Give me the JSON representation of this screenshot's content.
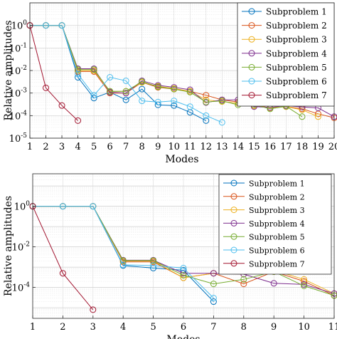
{
  "chart_data": [
    {
      "type": "line",
      "xlabel": "Modes",
      "ylabel": "Relative amplitudes",
      "xlim": [
        1,
        20
      ],
      "ylim": [
        1e-05,
        10
      ],
      "yscale": "log",
      "xticks": [
        1,
        2,
        3,
        4,
        5,
        6,
        7,
        8,
        9,
        10,
        11,
        12,
        13,
        14,
        15,
        16,
        17,
        18,
        19,
        20
      ],
      "yticks": [
        {
          "value": 1,
          "base": "10",
          "exp": "0"
        },
        {
          "value": 0.1,
          "base": "10",
          "exp": "-1"
        },
        {
          "value": 0.01,
          "base": "10",
          "exp": "-2"
        },
        {
          "value": 0.001,
          "base": "10",
          "exp": "-3"
        },
        {
          "value": 0.0001,
          "base": "10",
          "exp": "-4"
        },
        {
          "value": 1e-05,
          "base": "10",
          "exp": "-5"
        }
      ],
      "grid": true,
      "legend_position": "top-right",
      "series": [
        {
          "name": "Subproblem 1",
          "color": "#0072BD",
          "x": [
            1,
            2,
            3,
            4,
            5,
            6,
            7,
            8,
            9,
            10,
            11,
            12
          ],
          "y": [
            1,
            1,
            1,
            0.005,
            0.0006,
            0.0011,
            0.0005,
            0.0015,
            0.0003,
            0.00028,
            0.00014,
            6e-05
          ]
        },
        {
          "name": "Subproblem 2",
          "color": "#D95319",
          "x": [
            1,
            2,
            3,
            4,
            5,
            6,
            7,
            8,
            9,
            10,
            11,
            12,
            13,
            14,
            15,
            16,
            17,
            18,
            19,
            20
          ],
          "y": [
            1,
            1,
            1,
            0.009,
            0.009,
            0.001,
            0.001,
            0.003,
            0.0018,
            0.0015,
            0.0012,
            0.0008,
            0.0005,
            0.0004,
            0.0003,
            0.00022,
            0.00025,
            0.0002,
            0.00012,
            8e-05
          ]
        },
        {
          "name": "Subproblem 3",
          "color": "#EDB120",
          "x": [
            1,
            2,
            3,
            4,
            5,
            6,
            7,
            8,
            9,
            10,
            11,
            12,
            13,
            14,
            15,
            16,
            17,
            18,
            19
          ],
          "y": [
            1,
            1,
            1,
            0.01,
            0.01,
            0.0012,
            0.0012,
            0.003,
            0.002,
            0.0016,
            0.0012,
            0.0005,
            0.00042,
            0.00035,
            0.00027,
            0.00022,
            0.00025,
            0.00018,
            9e-05
          ]
        },
        {
          "name": "Subproblem 4",
          "color": "#7E2F8E",
          "x": [
            1,
            2,
            3,
            4,
            5,
            6,
            7,
            8,
            9,
            10,
            11,
            12,
            13,
            14,
            15,
            16,
            17,
            18,
            19,
            20
          ],
          "y": [
            1,
            1,
            1,
            0.012,
            0.012,
            0.0011,
            0.001,
            0.0035,
            0.0022,
            0.0018,
            0.0014,
            0.00038,
            0.0005,
            0.0005,
            0.00025,
            0.00023,
            0.00028,
            0.00024,
            0.00022,
            9e-05
          ]
        },
        {
          "name": "Subproblem 5",
          "color": "#77AC30",
          "x": [
            1,
            2,
            3,
            4,
            5,
            6,
            7,
            8,
            9,
            10,
            11,
            12,
            13,
            14,
            15,
            16,
            17,
            18
          ],
          "y": [
            1,
            1,
            1,
            0.011,
            0.011,
            0.0012,
            0.0012,
            0.0032,
            0.0019,
            0.0015,
            0.0011,
            0.0004,
            0.00045,
            0.0003,
            0.0003,
            0.0002,
            0.00026,
            9e-05
          ]
        },
        {
          "name": "Subproblem 6",
          "color": "#4DBEEE",
          "x": [
            1,
            2,
            3,
            4,
            5,
            6,
            7,
            8,
            9,
            10,
            11,
            12,
            13
          ],
          "y": [
            1,
            1,
            1,
            0.007,
            0.0008,
            0.005,
            0.0035,
            0.00045,
            0.0004,
            0.00045,
            0.00025,
            0.0001,
            5e-05
          ]
        },
        {
          "name": "Subproblem 7",
          "color": "#A2142F",
          "x": [
            1,
            2,
            3,
            4
          ],
          "y": [
            1,
            0.0017,
            0.00028,
            6e-05
          ]
        }
      ]
    },
    {
      "type": "line",
      "xlabel": "Modes",
      "ylabel": "Relative amplitudes",
      "xlim": [
        1,
        11
      ],
      "ylim": [
        3e-06,
        40
      ],
      "yscale": "log",
      "xticks": [
        1,
        2,
        3,
        4,
        5,
        6,
        7,
        8,
        9,
        10,
        11
      ],
      "yticks": [
        {
          "value": 1,
          "base": "10",
          "exp": "0"
        },
        {
          "value": 0.01,
          "base": "10",
          "exp": "-2"
        },
        {
          "value": 0.0001,
          "base": "10",
          "exp": "-4"
        }
      ],
      "grid": true,
      "legend_position": "top-right",
      "series": [
        {
          "name": "Subproblem 1",
          "color": "#0072BD",
          "x": [
            1,
            2,
            3,
            4,
            5,
            6,
            7
          ],
          "y": [
            1,
            1,
            1,
            0.0012,
            0.0009,
            0.0007,
            2e-05
          ]
        },
        {
          "name": "Subproblem 2",
          "color": "#D95319",
          "x": [
            1,
            2,
            3,
            4,
            5,
            6,
            7,
            8,
            9,
            10,
            11
          ],
          "y": [
            1,
            1,
            1,
            0.0018,
            0.0018,
            0.0003,
            0.0005,
            0.00015,
            0.0006,
            0.0002,
            4e-05
          ]
        },
        {
          "name": "Subproblem 3",
          "color": "#EDB120",
          "x": [
            1,
            2,
            3,
            4,
            5,
            6,
            7,
            8,
            9,
            10,
            11
          ],
          "y": [
            1,
            1,
            1,
            0.002,
            0.002,
            0.0003,
            0.0005,
            0.00045,
            0.0007,
            0.00025,
            5e-05
          ]
        },
        {
          "name": "Subproblem 4",
          "color": "#7E2F8E",
          "x": [
            1,
            2,
            3,
            4,
            5,
            6,
            7,
            8,
            9,
            10,
            11
          ],
          "y": [
            1,
            1,
            1,
            0.0022,
            0.0022,
            0.0005,
            0.0005,
            0.00045,
            0.00016,
            0.00014,
            5e-05
          ]
        },
        {
          "name": "Subproblem 5",
          "color": "#77AC30",
          "x": [
            1,
            2,
            3,
            4,
            5,
            6,
            7,
            8,
            9,
            10,
            11
          ],
          "y": [
            1,
            1,
            1,
            0.0021,
            0.0021,
            0.0004,
            0.00015,
            0.00025,
            0.0006,
            0.00012,
            4e-05
          ]
        },
        {
          "name": "Subproblem 6",
          "color": "#4DBEEE",
          "x": [
            1,
            2,
            3,
            4,
            5,
            6,
            7
          ],
          "y": [
            1,
            1,
            1,
            0.0013,
            0.0012,
            0.0009,
            3e-05
          ]
        },
        {
          "name": "Subproblem 7",
          "color": "#A2142F",
          "x": [
            1,
            2,
            3
          ],
          "y": [
            1,
            0.0005,
            8e-06
          ]
        }
      ]
    }
  ]
}
